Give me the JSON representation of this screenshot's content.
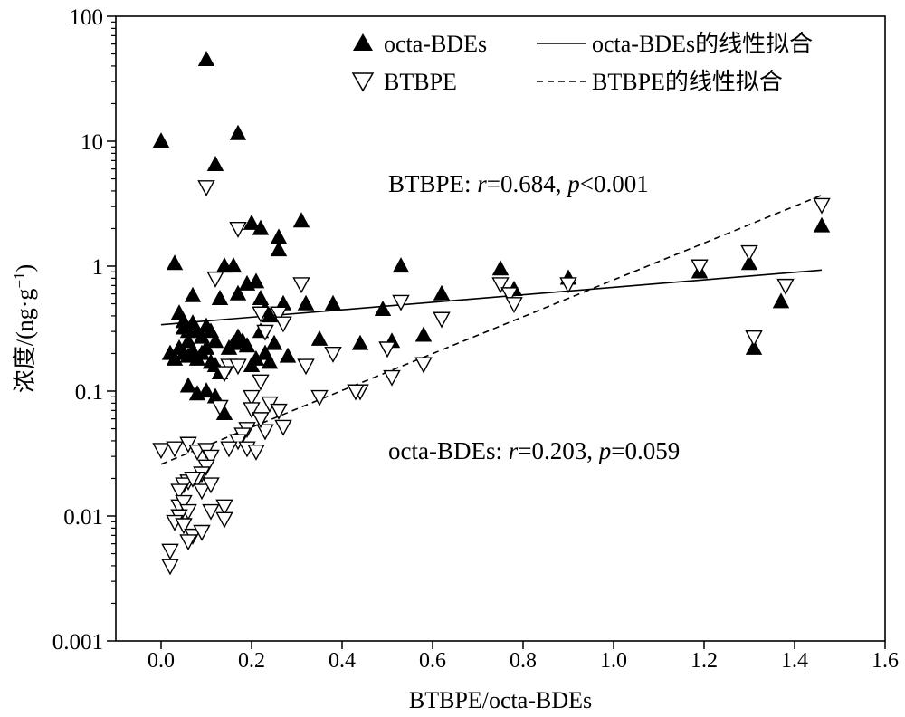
{
  "chart_data": {
    "type": "scatter",
    "xlabel": "BTBPE/octa-BDEs",
    "ylabel": "浓度/(ng·g⁻¹)",
    "ylabel_parts": {
      "main": "浓度/(ng·g",
      "sup": "−1",
      "close": ")"
    },
    "xlim": [
      -0.1,
      1.6
    ],
    "ylim": [
      0.001,
      100
    ],
    "yscale": "log",
    "xticks": [
      "0.0",
      "0.2",
      "0.4",
      "0.6",
      "0.8",
      "1.0",
      "1.2",
      "1.4",
      "1.6"
    ],
    "xtick_values": [
      0.0,
      0.2,
      0.4,
      0.6,
      0.8,
      1.0,
      1.2,
      1.4,
      1.6
    ],
    "yticks": [
      "0.001",
      "0.01",
      "0.1",
      "1",
      "10",
      "100"
    ],
    "ytick_values": [
      0.001,
      0.01,
      0.1,
      1,
      10,
      100
    ],
    "grid": false,
    "legend_position": "top-right",
    "legend": {
      "octa": "octa-BDEs",
      "btbpe": "BTBPE",
      "octa_fit": "octa-BDEs的线性拟合",
      "btbpe_fit": "BTBPE的线性拟合"
    },
    "annotations": {
      "btbpe": {
        "name": "BTBPE: ",
        "r_sym": "r",
        "r_val": "=0.684, ",
        "p_sym": "p",
        "p_val": "<0.001"
      },
      "octa": {
        "name": "octa-BDEs: ",
        "r_sym": "r",
        "r_val": "=0.203, ",
        "p_sym": "p",
        "p_val": "=0.059"
      }
    },
    "series": [
      {
        "name": "octa-BDEs",
        "marker": "filled-triangle-up",
        "color": "#000000",
        "points": [
          [
            0.0,
            10
          ],
          [
            0.1,
            45
          ],
          [
            0.12,
            6.5
          ],
          [
            0.17,
            11.5
          ],
          [
            0.03,
            1.05
          ],
          [
            0.04,
            0.42
          ],
          [
            0.05,
            0.32
          ],
          [
            0.06,
            0.25
          ],
          [
            0.07,
            0.58
          ],
          [
            0.08,
            0.3
          ],
          [
            0.09,
            0.27
          ],
          [
            0.1,
            0.33
          ],
          [
            0.11,
            0.3
          ],
          [
            0.12,
            0.25
          ],
          [
            0.13,
            0.55
          ],
          [
            0.14,
            1.0
          ],
          [
            0.16,
            1.0
          ],
          [
            0.17,
            0.6
          ],
          [
            0.19,
            0.72
          ],
          [
            0.2,
            2.2
          ],
          [
            0.22,
            2.0
          ],
          [
            0.21,
            0.75
          ],
          [
            0.22,
            0.55
          ],
          [
            0.23,
            0.45
          ],
          [
            0.24,
            0.4
          ],
          [
            0.26,
            1.7
          ],
          [
            0.26,
            1.35
          ],
          [
            0.27,
            0.5
          ],
          [
            0.31,
            2.3
          ],
          [
            0.32,
            0.5
          ],
          [
            0.38,
            0.5
          ],
          [
            0.35,
            0.26
          ],
          [
            0.44,
            0.24
          ],
          [
            0.49,
            0.45
          ],
          [
            0.51,
            0.25
          ],
          [
            0.53,
            1.0
          ],
          [
            0.58,
            0.28
          ],
          [
            0.62,
            0.6
          ],
          [
            0.75,
            0.95
          ],
          [
            0.78,
            0.65
          ],
          [
            0.9,
            0.8
          ],
          [
            1.19,
            0.9
          ],
          [
            1.3,
            1.05
          ],
          [
            1.31,
            0.22
          ],
          [
            1.37,
            0.52
          ],
          [
            1.46,
            2.1
          ],
          [
            0.02,
            0.2
          ],
          [
            0.03,
            0.18
          ],
          [
            0.04,
            0.22
          ],
          [
            0.05,
            0.2
          ],
          [
            0.06,
            0.19
          ],
          [
            0.07,
            0.21
          ],
          [
            0.08,
            0.18
          ],
          [
            0.09,
            0.2
          ],
          [
            0.1,
            0.22
          ],
          [
            0.11,
            0.17
          ],
          [
            0.12,
            0.16
          ],
          [
            0.13,
            0.14
          ],
          [
            0.15,
            0.22
          ],
          [
            0.16,
            0.24
          ],
          [
            0.17,
            0.27
          ],
          [
            0.18,
            0.25
          ],
          [
            0.19,
            0.23
          ],
          [
            0.2,
            0.16
          ],
          [
            0.21,
            0.18
          ],
          [
            0.22,
            0.3
          ],
          [
            0.23,
            0.2
          ],
          [
            0.24,
            0.17
          ],
          [
            0.25,
            0.24
          ],
          [
            0.28,
            0.19
          ],
          [
            0.06,
            0.11
          ],
          [
            0.08,
            0.095
          ],
          [
            0.1,
            0.1
          ],
          [
            0.12,
            0.09
          ],
          [
            0.14,
            0.066
          ],
          [
            0.05,
            0.36
          ],
          [
            0.06,
            0.3
          ],
          [
            0.07,
            0.35
          ]
        ]
      },
      {
        "name": "BTBPE",
        "marker": "open-triangle-down",
        "color": "#000000",
        "points": [
          [
            0.1,
            4.3
          ],
          [
            0.17,
            2.0
          ],
          [
            0.12,
            0.8
          ],
          [
            0.31,
            0.72
          ],
          [
            0.53,
            0.52
          ],
          [
            0.62,
            0.38
          ],
          [
            0.75,
            0.72
          ],
          [
            0.77,
            0.6
          ],
          [
            0.78,
            0.5
          ],
          [
            0.9,
            0.72
          ],
          [
            1.19,
            1.0
          ],
          [
            1.3,
            1.3
          ],
          [
            1.31,
            0.27
          ],
          [
            1.38,
            0.7
          ],
          [
            1.46,
            3.1
          ],
          [
            0.22,
            0.42
          ],
          [
            0.26,
            0.42
          ],
          [
            0.27,
            0.35
          ],
          [
            0.23,
            0.3
          ],
          [
            0.15,
            0.16
          ],
          [
            0.17,
            0.16
          ],
          [
            0.14,
            0.14
          ],
          [
            0.22,
            0.12
          ],
          [
            0.32,
            0.16
          ],
          [
            0.38,
            0.2
          ],
          [
            0.5,
            0.22
          ],
          [
            0.51,
            0.13
          ],
          [
            0.58,
            0.165
          ],
          [
            0.44,
            0.1
          ],
          [
            0.43,
            0.1
          ],
          [
            0.35,
            0.09
          ],
          [
            0.2,
            0.09
          ],
          [
            0.24,
            0.08
          ],
          [
            0.26,
            0.07
          ],
          [
            0.27,
            0.052
          ],
          [
            0.23,
            0.048
          ],
          [
            0.19,
            0.05
          ],
          [
            0.18,
            0.045
          ],
          [
            0.13,
            0.075
          ],
          [
            0.2,
            0.072
          ],
          [
            0.22,
            0.06
          ],
          [
            0.17,
            0.04
          ],
          [
            0.19,
            0.035
          ],
          [
            0.21,
            0.033
          ],
          [
            0.15,
            0.035
          ],
          [
            0.0,
            0.034
          ],
          [
            0.03,
            0.035
          ],
          [
            0.06,
            0.038
          ],
          [
            0.08,
            0.033
          ],
          [
            0.1,
            0.034
          ],
          [
            0.11,
            0.03
          ],
          [
            0.1,
            0.025
          ],
          [
            0.09,
            0.022
          ],
          [
            0.08,
            0.02
          ],
          [
            0.06,
            0.019
          ],
          [
            0.05,
            0.018
          ],
          [
            0.04,
            0.016
          ],
          [
            0.07,
            0.02
          ],
          [
            0.09,
            0.016
          ],
          [
            0.11,
            0.018
          ],
          [
            0.04,
            0.012
          ],
          [
            0.05,
            0.013
          ],
          [
            0.06,
            0.011
          ],
          [
            0.04,
            0.01
          ],
          [
            0.03,
            0.009
          ],
          [
            0.05,
            0.0085
          ],
          [
            0.07,
            0.007
          ],
          [
            0.09,
            0.0075
          ],
          [
            0.11,
            0.011
          ],
          [
            0.14,
            0.012
          ],
          [
            0.14,
            0.0095
          ],
          [
            0.02,
            0.0053
          ],
          [
            0.02,
            0.004
          ],
          [
            0.06,
            0.0063
          ]
        ]
      }
    ],
    "fits": [
      {
        "name": "octa-BDEs的线性拟合",
        "style": "solid",
        "points": [
          [
            0.0,
            0.34
          ],
          [
            1.46,
            0.93
          ]
        ]
      },
      {
        "name": "BTBPE的线性拟合",
        "style": "dashed",
        "points": [
          [
            0.0,
            0.026
          ],
          [
            1.46,
            3.7
          ]
        ]
      }
    ]
  }
}
